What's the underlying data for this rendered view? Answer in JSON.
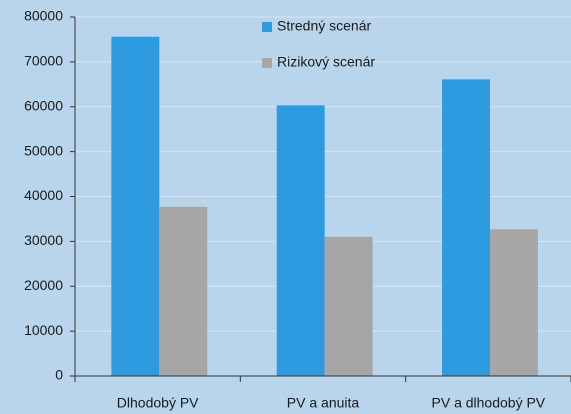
{
  "chart_data": {
    "type": "bar",
    "categories": [
      "Dlhodobý PV",
      "PV a anuita",
      "PV a dlhodobý PV"
    ],
    "series": [
      {
        "name": "Stredný scenár",
        "color": "#2e9be0",
        "values": [
          75600,
          60300,
          66100
        ]
      },
      {
        "name": "Rizikový scenár",
        "color": "#a6a6a6",
        "values": [
          37700,
          31000,
          32700
        ]
      }
    ],
    "ylim": [
      0,
      80000
    ],
    "yticks": [
      0,
      10000,
      20000,
      30000,
      40000,
      50000,
      60000,
      70000,
      80000
    ],
    "grid": true,
    "legend": "top"
  }
}
